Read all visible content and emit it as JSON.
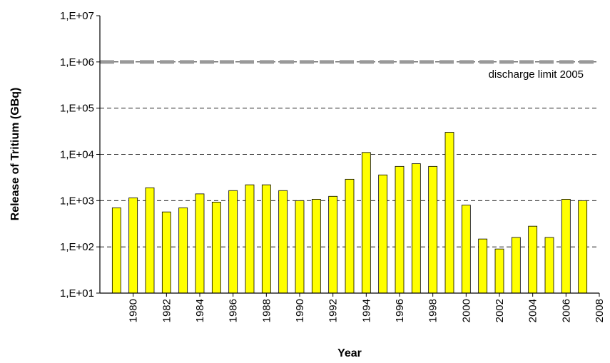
{
  "chart_data": {
    "type": "bar",
    "x_label": "Year",
    "y_label": "Release of Tritium (GBq)",
    "x": [
      1979,
      1980,
      1981,
      1982,
      1983,
      1984,
      1985,
      1986,
      1987,
      1988,
      1989,
      1990,
      1991,
      1992,
      1993,
      1994,
      1995,
      1996,
      1997,
      1998,
      1999,
      2000,
      2001,
      2002,
      2003,
      2004,
      2005,
      2006,
      2007
    ],
    "values": [
      700,
      1150,
      1900,
      570,
      700,
      1400,
      930,
      1650,
      2200,
      2200,
      1650,
      1000,
      1070,
      1240,
      2900,
      11000,
      3600,
      5500,
      6300,
      5500,
      30000,
      800,
      148,
      90,
      160,
      280,
      160,
      1070,
      1000
    ],
    "color": "#ffff00",
    "xlim": [
      1978,
      2008
    ],
    "xticks": [
      1980,
      1982,
      1984,
      1986,
      1988,
      1990,
      1992,
      1994,
      1996,
      1998,
      2000,
      2002,
      2004,
      2006,
      2008
    ],
    "ylim": [
      10,
      10000000
    ],
    "log_scale": true,
    "yticks": [
      {
        "value": 10,
        "label": "1,E+01"
      },
      {
        "value": 100,
        "label": "1,E+02"
      },
      {
        "value": 1000,
        "label": "1,E+03"
      },
      {
        "value": 10000,
        "label": "1,E+04"
      },
      {
        "value": 100000,
        "label": "1,E+05"
      },
      {
        "value": 1000000,
        "label": "1,E+06"
      },
      {
        "value": 10000000,
        "label": "1,E+07"
      }
    ],
    "grid": true,
    "reference_line": {
      "value": 1000000,
      "label": "discharge limit 2005",
      "color": "#999999"
    }
  }
}
